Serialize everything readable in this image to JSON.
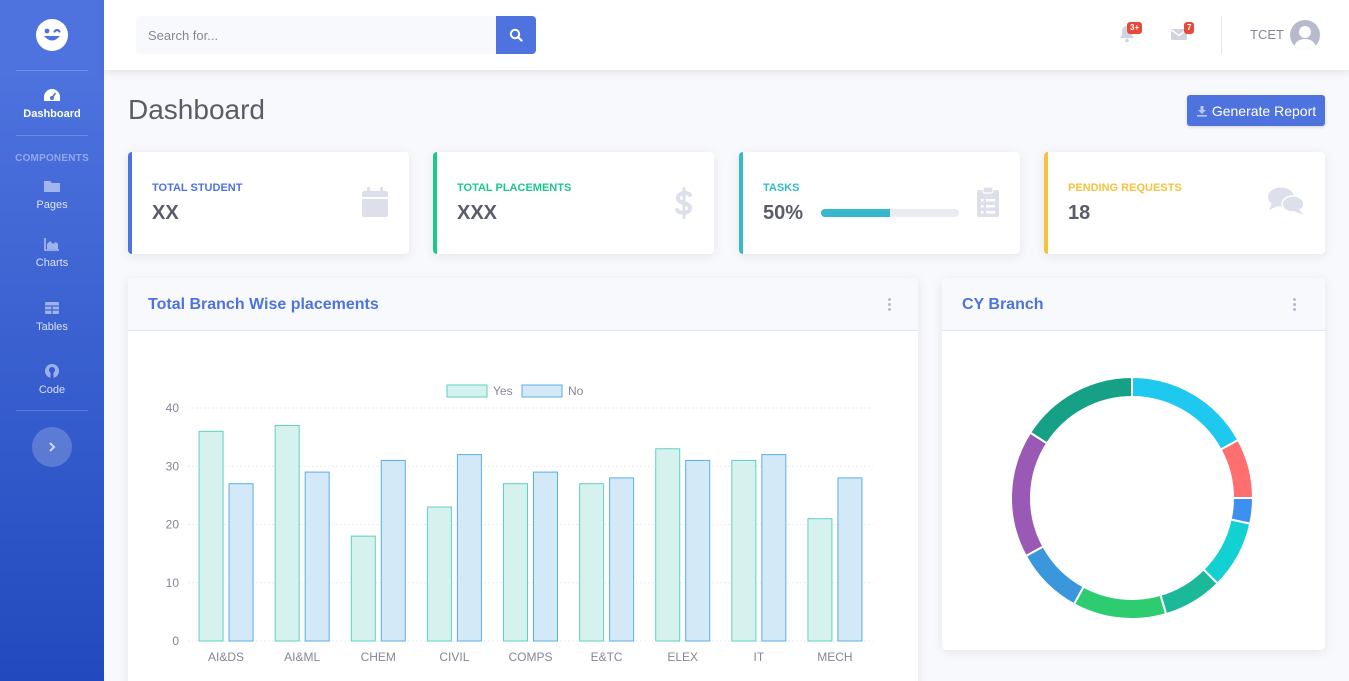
{
  "sidebar": {
    "brand_icon": "laugh-wink-icon",
    "items": [
      {
        "label": "Dashboard",
        "icon": "tachometer-icon",
        "active": true
      },
      {
        "label": "Pages",
        "icon": "folder-icon"
      },
      {
        "label": "Charts",
        "icon": "chart-area-icon"
      },
      {
        "label": "Tables",
        "icon": "table-icon"
      },
      {
        "label": "Code",
        "icon": "github-icon"
      }
    ],
    "heading": "Components"
  },
  "topbar": {
    "search_placeholder": "Search for...",
    "alerts_badge": "3+",
    "messages_badge": "7",
    "user_name": "TCET"
  },
  "page": {
    "title": "Dashboard",
    "report_button": "Generate Report"
  },
  "stats": [
    {
      "label": "Total Student",
      "value": "XX",
      "color": "#4e73df",
      "icon": "calendar-icon"
    },
    {
      "label": "Total Placements",
      "value": "XXX",
      "color": "#1cc88a",
      "icon": "dollar-icon"
    },
    {
      "label": "Tasks",
      "value": "50%",
      "progress": 50,
      "color": "#36b9cc",
      "icon": "clipboard-list-icon"
    },
    {
      "label": "Pending Requests",
      "value": "18",
      "color": "#f6c23e",
      "icon": "comments-icon"
    }
  ],
  "bar_card": {
    "title": "Total Branch Wise placements"
  },
  "donut_card": {
    "title": "CY Branch"
  },
  "chart_data": [
    {
      "type": "bar",
      "categories": [
        "AI&DS",
        "AI&ML",
        "CHEM",
        "CIVIL",
        "COMPS",
        "E&TC",
        "ELEX",
        "IT",
        "MECH"
      ],
      "series": [
        {
          "name": "Yes",
          "values": [
            36,
            37,
            18,
            23,
            27,
            27,
            33,
            31,
            21
          ],
          "fill": "#d6f2ee",
          "stroke": "#5fd1c1"
        },
        {
          "name": "No",
          "values": [
            27,
            29,
            31,
            32,
            29,
            28,
            31,
            32,
            28
          ],
          "fill": "#d3e9f8",
          "stroke": "#5aaee6"
        }
      ],
      "ylim": [
        0,
        40
      ],
      "yticks": [
        0,
        10,
        20,
        30,
        40
      ],
      "legend": "top-center",
      "grid": true
    },
    {
      "type": "pie",
      "values": [
        15,
        7,
        3,
        8,
        7,
        11,
        8,
        15,
        14
      ],
      "colors": [
        "#1ec8ee",
        "#ff6f6f",
        "#3d8ff0",
        "#13d0d2",
        "#1bb89a",
        "#2ecc71",
        "#3a97dc",
        "#9b59b6",
        "#16a085"
      ],
      "donut": true
    }
  ]
}
